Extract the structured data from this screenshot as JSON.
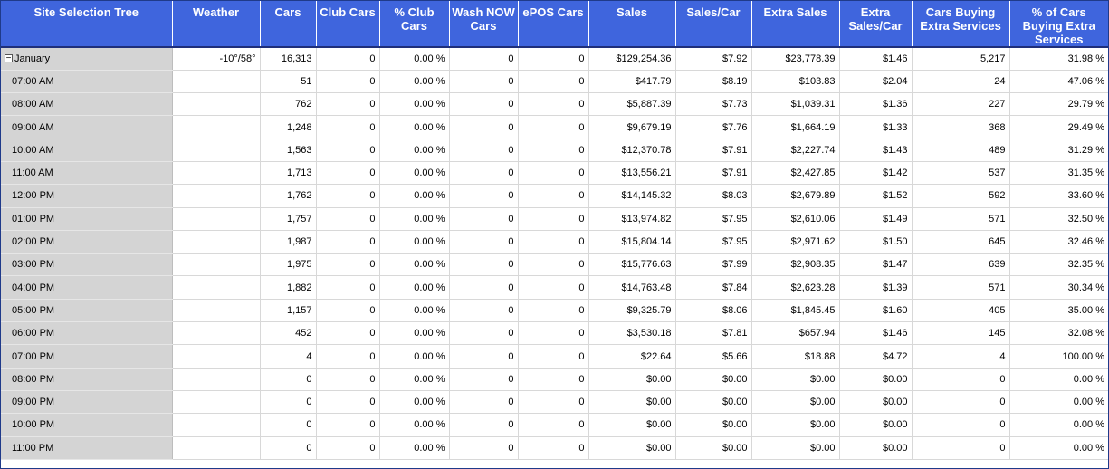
{
  "columns": [
    "Site Selection Tree",
    "Weather",
    "Cars",
    "Club Cars",
    "% Club Cars",
    "Wash NOW Cars",
    "ePOS Cars",
    "Sales",
    "Sales/Car",
    "Extra Sales",
    "Extra Sales/Car",
    "Cars Buying Extra Services",
    "% of Cars Buying Extra Services"
  ],
  "group": {
    "label": "January",
    "expander": "−",
    "cells": [
      "-10°/58°",
      "16,313",
      "0",
      "0.00 %",
      "0",
      "0",
      "$129,254.36",
      "$7.92",
      "$23,778.39",
      "$1.46",
      "5,217",
      "31.98 %"
    ]
  },
  "rows": [
    {
      "label": "07:00 AM",
      "cells": [
        "",
        "51",
        "0",
        "0.00 %",
        "0",
        "0",
        "$417.79",
        "$8.19",
        "$103.83",
        "$2.04",
        "24",
        "47.06 %"
      ]
    },
    {
      "label": "08:00 AM",
      "cells": [
        "",
        "762",
        "0",
        "0.00 %",
        "0",
        "0",
        "$5,887.39",
        "$7.73",
        "$1,039.31",
        "$1.36",
        "227",
        "29.79 %"
      ]
    },
    {
      "label": "09:00 AM",
      "cells": [
        "",
        "1,248",
        "0",
        "0.00 %",
        "0",
        "0",
        "$9,679.19",
        "$7.76",
        "$1,664.19",
        "$1.33",
        "368",
        "29.49 %"
      ]
    },
    {
      "label": "10:00 AM",
      "cells": [
        "",
        "1,563",
        "0",
        "0.00 %",
        "0",
        "0",
        "$12,370.78",
        "$7.91",
        "$2,227.74",
        "$1.43",
        "489",
        "31.29 %"
      ]
    },
    {
      "label": "11:00 AM",
      "cells": [
        "",
        "1,713",
        "0",
        "0.00 %",
        "0",
        "0",
        "$13,556.21",
        "$7.91",
        "$2,427.85",
        "$1.42",
        "537",
        "31.35 %"
      ]
    },
    {
      "label": "12:00 PM",
      "cells": [
        "",
        "1,762",
        "0",
        "0.00 %",
        "0",
        "0",
        "$14,145.32",
        "$8.03",
        "$2,679.89",
        "$1.52",
        "592",
        "33.60 %"
      ]
    },
    {
      "label": "01:00 PM",
      "cells": [
        "",
        "1,757",
        "0",
        "0.00 %",
        "0",
        "0",
        "$13,974.82",
        "$7.95",
        "$2,610.06",
        "$1.49",
        "571",
        "32.50 %"
      ]
    },
    {
      "label": "02:00 PM",
      "cells": [
        "",
        "1,987",
        "0",
        "0.00 %",
        "0",
        "0",
        "$15,804.14",
        "$7.95",
        "$2,971.62",
        "$1.50",
        "645",
        "32.46 %"
      ]
    },
    {
      "label": "03:00 PM",
      "cells": [
        "",
        "1,975",
        "0",
        "0.00 %",
        "0",
        "0",
        "$15,776.63",
        "$7.99",
        "$2,908.35",
        "$1.47",
        "639",
        "32.35 %"
      ]
    },
    {
      "label": "04:00 PM",
      "cells": [
        "",
        "1,882",
        "0",
        "0.00 %",
        "0",
        "0",
        "$14,763.48",
        "$7.84",
        "$2,623.28",
        "$1.39",
        "571",
        "30.34 %"
      ]
    },
    {
      "label": "05:00 PM",
      "cells": [
        "",
        "1,157",
        "0",
        "0.00 %",
        "0",
        "0",
        "$9,325.79",
        "$8.06",
        "$1,845.45",
        "$1.60",
        "405",
        "35.00 %"
      ]
    },
    {
      "label": "06:00 PM",
      "cells": [
        "",
        "452",
        "0",
        "0.00 %",
        "0",
        "0",
        "$3,530.18",
        "$7.81",
        "$657.94",
        "$1.46",
        "145",
        "32.08 %"
      ]
    },
    {
      "label": "07:00 PM",
      "cells": [
        "",
        "4",
        "0",
        "0.00 %",
        "0",
        "0",
        "$22.64",
        "$5.66",
        "$18.88",
        "$4.72",
        "4",
        "100.00 %"
      ]
    },
    {
      "label": "08:00 PM",
      "cells": [
        "",
        "0",
        "0",
        "0.00 %",
        "0",
        "0",
        "$0.00",
        "$0.00",
        "$0.00",
        "$0.00",
        "0",
        "0.00 %"
      ]
    },
    {
      "label": "09:00 PM",
      "cells": [
        "",
        "0",
        "0",
        "0.00 %",
        "0",
        "0",
        "$0.00",
        "$0.00",
        "$0.00",
        "$0.00",
        "0",
        "0.00 %"
      ]
    },
    {
      "label": "10:00 PM",
      "cells": [
        "",
        "0",
        "0",
        "0.00 %",
        "0",
        "0",
        "$0.00",
        "$0.00",
        "$0.00",
        "$0.00",
        "0",
        "0.00 %"
      ]
    },
    {
      "label": "11:00 PM",
      "cells": [
        "",
        "0",
        "0",
        "0.00 %",
        "0",
        "0",
        "$0.00",
        "$0.00",
        "$0.00",
        "$0.00",
        "0",
        "0.00 %"
      ]
    }
  ],
  "colors": {
    "header_bg": "#3f65dd",
    "header_text": "#ffffff",
    "tree_bg": "#d4d4d4",
    "grid_line": "#d8d8d8"
  }
}
